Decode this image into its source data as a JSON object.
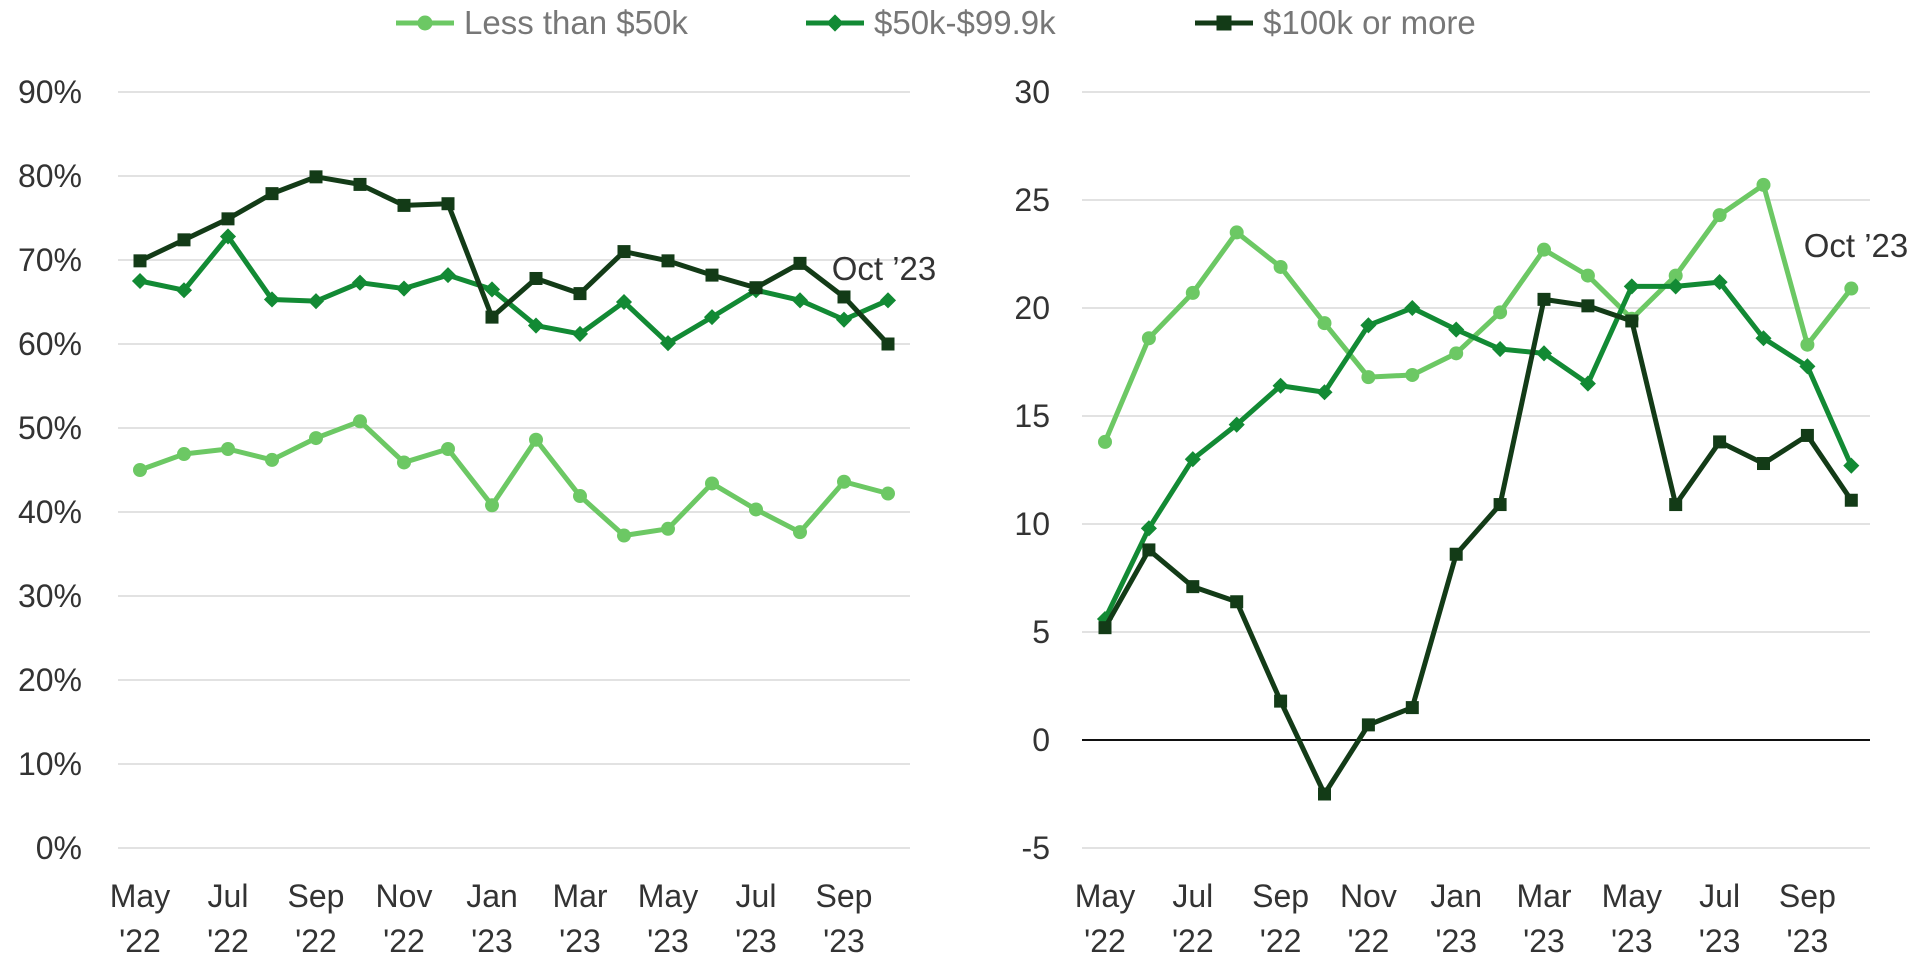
{
  "legend": [
    {
      "label": "Less than $50k",
      "color": "#6cc864",
      "marker": "circle"
    },
    {
      "label": "$50k-$99.9k",
      "color": "#128a34",
      "marker": "diamond"
    },
    {
      "label": "$100k or more",
      "color": "#133b17",
      "marker": "square"
    }
  ],
  "chart_data": [
    {
      "type": "line",
      "x_ticks": [
        [
          "May",
          "'22"
        ],
        [
          "Jul",
          "'22"
        ],
        [
          "Sep",
          "'22"
        ],
        [
          "Nov",
          "'22"
        ],
        [
          "Jan",
          "'23"
        ],
        [
          "Mar",
          "'23"
        ],
        [
          "May",
          "'23"
        ],
        [
          "Jul",
          "'23"
        ],
        [
          "Sep",
          "'23"
        ]
      ],
      "x": [
        "May '22",
        "Jun '22",
        "Jul '22",
        "Aug '22",
        "Sep '22",
        "Oct '22",
        "Nov '22",
        "Dec '22",
        "Jan '23",
        "Feb '23",
        "Mar '23",
        "Apr '23",
        "May '23",
        "Jun '23",
        "Jul '23",
        "Aug '23",
        "Sep '23",
        "Oct '23"
      ],
      "ylim": [
        0,
        90
      ],
      "y_ticks": [
        0,
        10,
        20,
        30,
        40,
        50,
        60,
        70,
        80,
        90
      ],
      "y_tick_labels": [
        "0%",
        "10%",
        "20%",
        "30%",
        "40%",
        "50%",
        "60%",
        "70%",
        "80%",
        "90%"
      ],
      "grid": true,
      "annotation": "Oct ’23",
      "series": [
        {
          "name": "Less than $50k",
          "values": [
            45,
            46.9,
            47.5,
            46.2,
            48.8,
            50.8,
            45.9,
            47.5,
            40.8,
            48.6,
            41.9,
            37.2,
            38.0,
            43.4,
            40.3,
            37.6,
            43.6,
            42.2
          ]
        },
        {
          "name": "$50k-$99.9k",
          "values": [
            67.5,
            66.4,
            72.8,
            65.3,
            65.1,
            67.3,
            66.6,
            68.2,
            66.5,
            62.2,
            61.2,
            65.0,
            60.1,
            63.2,
            66.4,
            65.2,
            62.9,
            65.2
          ]
        },
        {
          "name": "$100k or more",
          "values": [
            69.9,
            72.4,
            74.9,
            77.9,
            79.9,
            79.0,
            76.5,
            76.7,
            63.2,
            67.8,
            66.0,
            71.0,
            69.9,
            68.2,
            66.7,
            69.6,
            65.6,
            60.0
          ]
        }
      ]
    },
    {
      "type": "line",
      "x_ticks": [
        [
          "May",
          "'22"
        ],
        [
          "Jul",
          "'22"
        ],
        [
          "Sep",
          "'22"
        ],
        [
          "Nov",
          "'22"
        ],
        [
          "Jan",
          "'23"
        ],
        [
          "Mar",
          "'23"
        ],
        [
          "May",
          "'23"
        ],
        [
          "Jul",
          "'23"
        ],
        [
          "Sep",
          "'23"
        ]
      ],
      "x": [
        "May '22",
        "Jun '22",
        "Jul '22",
        "Aug '22",
        "Sep '22",
        "Oct '22",
        "Nov '22",
        "Dec '22",
        "Jan '23",
        "Feb '23",
        "Mar '23",
        "Apr '23",
        "May '23",
        "Jun '23",
        "Jul '23",
        "Aug '23",
        "Sep '23",
        "Oct '23"
      ],
      "ylim": [
        -5,
        30
      ],
      "y_ticks": [
        -5,
        0,
        5,
        10,
        15,
        20,
        25,
        30
      ],
      "y_tick_labels": [
        "-5",
        "0",
        "5",
        "10",
        "15",
        "20",
        "25",
        "30"
      ],
      "grid": true,
      "zero_line": true,
      "annotation": "Oct ’23",
      "series": [
        {
          "name": "Less than $50k",
          "values": [
            13.8,
            18.6,
            20.7,
            23.5,
            21.9,
            19.3,
            16.8,
            16.9,
            17.9,
            19.8,
            22.7,
            21.5,
            19.5,
            21.5,
            24.3,
            25.7,
            18.3,
            20.9
          ]
        },
        {
          "name": "$50k-$99.9k",
          "values": [
            5.6,
            9.8,
            13.0,
            14.6,
            16.4,
            16.1,
            19.2,
            20.0,
            19.0,
            18.1,
            17.9,
            16.5,
            21.0,
            21.0,
            21.2,
            18.6,
            17.3,
            12.7
          ]
        },
        {
          "name": "$100k or more",
          "values": [
            5.2,
            8.8,
            7.1,
            6.4,
            1.8,
            -2.5,
            0.7,
            1.5,
            8.6,
            10.9,
            20.4,
            20.1,
            19.4,
            10.9,
            13.8,
            12.8,
            14.1,
            11.1
          ]
        }
      ]
    }
  ]
}
